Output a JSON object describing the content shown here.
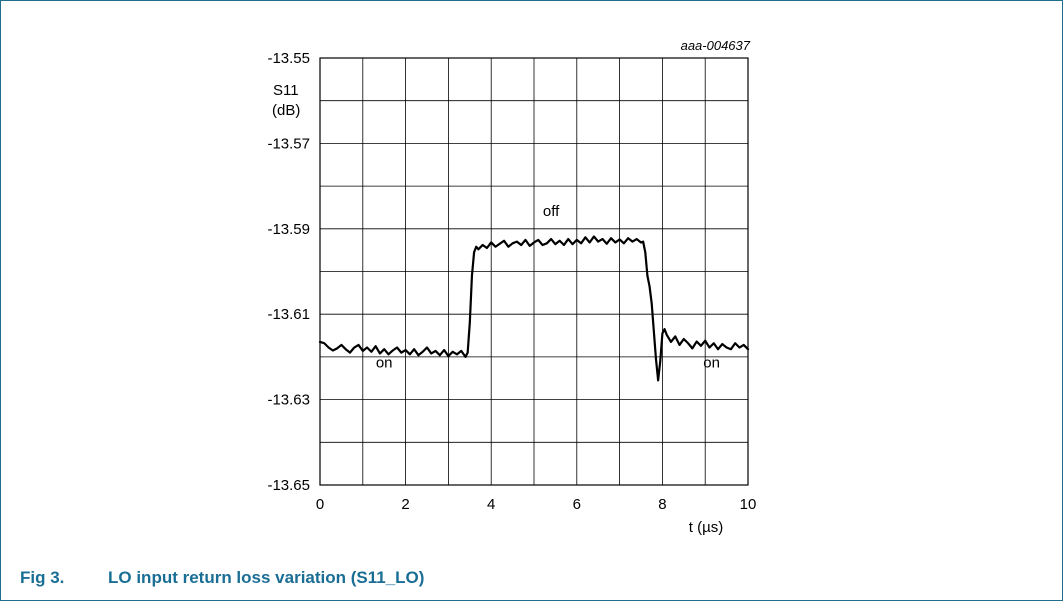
{
  "figure": {
    "caption_number": "Fig 3.",
    "caption_text": "LO input return loss variation (S11_LO)",
    "image_code": "aaa-004637"
  },
  "chart_data": {
    "type": "line",
    "title": "",
    "ylabel_line1": "S11",
    "ylabel_line2": "(dB)",
    "xlabel": "t (µs)",
    "xlim": [
      0,
      10
    ],
    "ylim": [
      -13.65,
      -13.55
    ],
    "x_ticks": [
      0,
      2,
      4,
      6,
      8,
      10
    ],
    "y_ticks": [
      -13.55,
      -13.57,
      -13.59,
      -13.61,
      -13.63,
      -13.65
    ],
    "x_grid_step": 1,
    "y_grid_step": 0.01,
    "grid": true,
    "annotations": [
      {
        "text": "off",
        "x": 5.4,
        "y": -13.587
      },
      {
        "text": "on",
        "x": 1.5,
        "y": -13.6225
      },
      {
        "text": "on",
        "x": 9.15,
        "y": -13.6225
      }
    ],
    "series": [
      {
        "x": [
          0,
          0.1,
          0.2,
          0.3,
          0.4,
          0.5,
          0.6,
          0.7,
          0.8,
          0.9,
          1.0,
          1.1,
          1.2,
          1.3,
          1.4,
          1.5,
          1.6,
          1.7,
          1.8,
          1.9,
          2.0,
          2.1,
          2.2,
          2.3,
          2.4,
          2.5,
          2.6,
          2.7,
          2.8,
          2.9,
          3.0,
          3.1,
          3.2,
          3.3,
          3.4,
          3.45,
          3.5,
          3.55,
          3.6,
          3.65,
          3.7,
          3.8,
          3.9,
          4.0,
          4.1,
          4.2,
          4.3,
          4.4,
          4.5,
          4.6,
          4.7,
          4.8,
          4.9,
          5.0,
          5.1,
          5.2,
          5.3,
          5.4,
          5.5,
          5.6,
          5.7,
          5.8,
          5.9,
          6.0,
          6.1,
          6.2,
          6.3,
          6.4,
          6.5,
          6.6,
          6.7,
          6.8,
          6.9,
          7.0,
          7.1,
          7.2,
          7.3,
          7.4,
          7.5,
          7.55,
          7.6,
          7.65,
          7.7,
          7.75,
          7.8,
          7.85,
          7.9,
          7.95,
          8.0,
          8.05,
          8.1,
          8.2,
          8.3,
          8.4,
          8.5,
          8.6,
          8.7,
          8.8,
          8.9,
          9.0,
          9.1,
          9.2,
          9.3,
          9.4,
          9.5,
          9.6,
          9.7,
          9.8,
          9.9,
          10.0
        ],
        "y": [
          -13.6165,
          -13.6168,
          -13.6178,
          -13.6185,
          -13.618,
          -13.6172,
          -13.6182,
          -13.619,
          -13.6178,
          -13.6172,
          -13.6186,
          -13.6178,
          -13.6188,
          -13.6175,
          -13.6192,
          -13.6182,
          -13.6194,
          -13.6185,
          -13.6178,
          -13.619,
          -13.6184,
          -13.6194,
          -13.6182,
          -13.6196,
          -13.6188,
          -13.6178,
          -13.6192,
          -13.6186,
          -13.6196,
          -13.6184,
          -13.6198,
          -13.6188,
          -13.6194,
          -13.6186,
          -13.62,
          -13.619,
          -13.612,
          -13.601,
          -13.5955,
          -13.5942,
          -13.5948,
          -13.5938,
          -13.5945,
          -13.5932,
          -13.5942,
          -13.5935,
          -13.5928,
          -13.5942,
          -13.5934,
          -13.593,
          -13.5938,
          -13.5926,
          -13.594,
          -13.5932,
          -13.5926,
          -13.5938,
          -13.5934,
          -13.5924,
          -13.5936,
          -13.5928,
          -13.5938,
          -13.5924,
          -13.5936,
          -13.5926,
          -13.5934,
          -13.592,
          -13.5932,
          -13.5918,
          -13.593,
          -13.5924,
          -13.5935,
          -13.5922,
          -13.5932,
          -13.5925,
          -13.5934,
          -13.5922,
          -13.593,
          -13.5924,
          -13.5932,
          -13.593,
          -13.5955,
          -13.601,
          -13.6035,
          -13.6075,
          -13.614,
          -13.6205,
          -13.6255,
          -13.621,
          -13.6145,
          -13.6135,
          -13.6148,
          -13.6165,
          -13.6152,
          -13.6172,
          -13.6158,
          -13.6168,
          -13.618,
          -13.6164,
          -13.6174,
          -13.6162,
          -13.6178,
          -13.6168,
          -13.6182,
          -13.617,
          -13.6178,
          -13.6182,
          -13.6168,
          -13.6178,
          -13.6172,
          -13.6182
        ]
      }
    ]
  }
}
